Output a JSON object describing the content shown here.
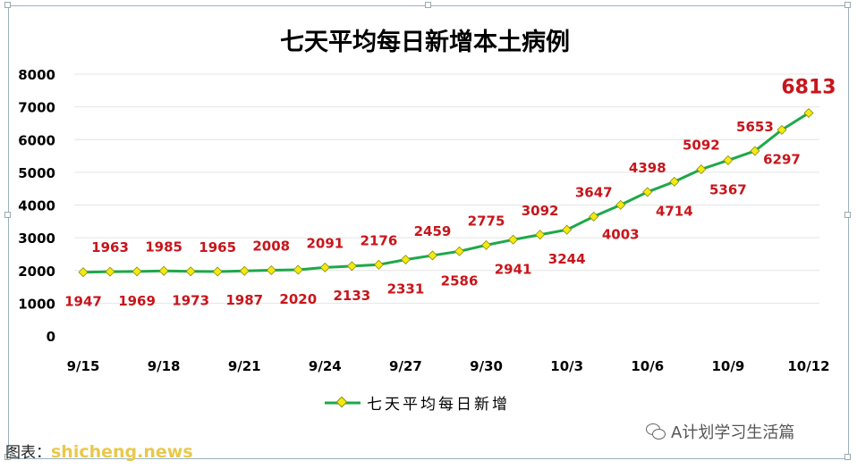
{
  "chart_data": {
    "type": "line",
    "title": "七天平均每日新增本土病例",
    "x": [
      "9/15",
      "9/16",
      "9/17",
      "9/18",
      "9/19",
      "9/20",
      "9/21",
      "9/22",
      "9/23",
      "9/24",
      "9/25",
      "9/26",
      "9/27",
      "9/28",
      "9/29",
      "9/30",
      "10/1",
      "10/2",
      "10/3",
      "10/4",
      "10/5",
      "10/6",
      "10/7",
      "10/8",
      "10/9",
      "10/10",
      "10/11",
      "10/12"
    ],
    "x_tick_labels": [
      "9/15",
      "9/18",
      "9/21",
      "9/24",
      "9/27",
      "9/30",
      "10/3",
      "10/6",
      "10/9",
      "10/12"
    ],
    "series": [
      {
        "name": "七天平均每日新增",
        "values": [
          1947,
          1963,
          1969,
          1985,
          1973,
          1965,
          1987,
          2008,
          2020,
          2091,
          2133,
          2176,
          2331,
          2459,
          2586,
          2775,
          2941,
          3092,
          3244,
          3647,
          4003,
          4398,
          4714,
          5092,
          5367,
          5653,
          6297,
          6813
        ]
      }
    ],
    "ylim": [
      0,
      8000
    ],
    "y_ticks": [
      0,
      1000,
      2000,
      3000,
      4000,
      5000,
      6000,
      7000,
      8000
    ],
    "grid": true,
    "legend_position": "bottom",
    "colors": {
      "line": "#1ea84a",
      "marker": "#f2ea10",
      "label": "#c8151b"
    }
  },
  "footer": {
    "source_label": "图表：",
    "brand": "shicheng.news"
  },
  "watermark": {
    "text": "A计划学习生活篇"
  }
}
